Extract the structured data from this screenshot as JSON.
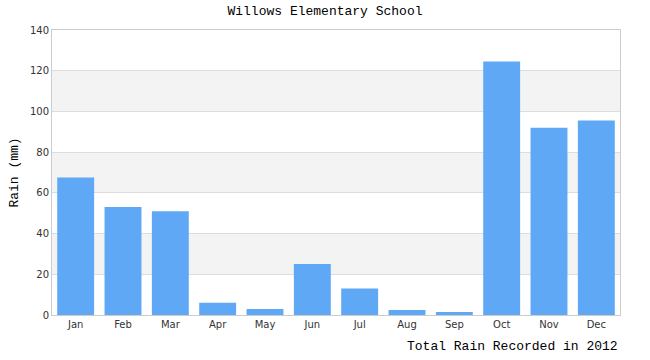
{
  "chart_data": {
    "type": "bar",
    "title": "Willows Elementary School",
    "x_label": "Total Rain Recorded in 2012",
    "y_label": "Rain (mm)",
    "categories": [
      "Jan",
      "Feb",
      "Mar",
      "Apr",
      "May",
      "Jun",
      "Jul",
      "Aug",
      "Sep",
      "Oct",
      "Nov",
      "Dec"
    ],
    "values": [
      67.5,
      53,
      51,
      6,
      3,
      25,
      13,
      2.5,
      1.5,
      124.5,
      92,
      95.5
    ],
    "color": "#5fa8f6",
    "ylim": [
      0,
      140
    ],
    "yticks": [
      0,
      20,
      40,
      60,
      80,
      100,
      120,
      140
    ],
    "grid": true
  }
}
